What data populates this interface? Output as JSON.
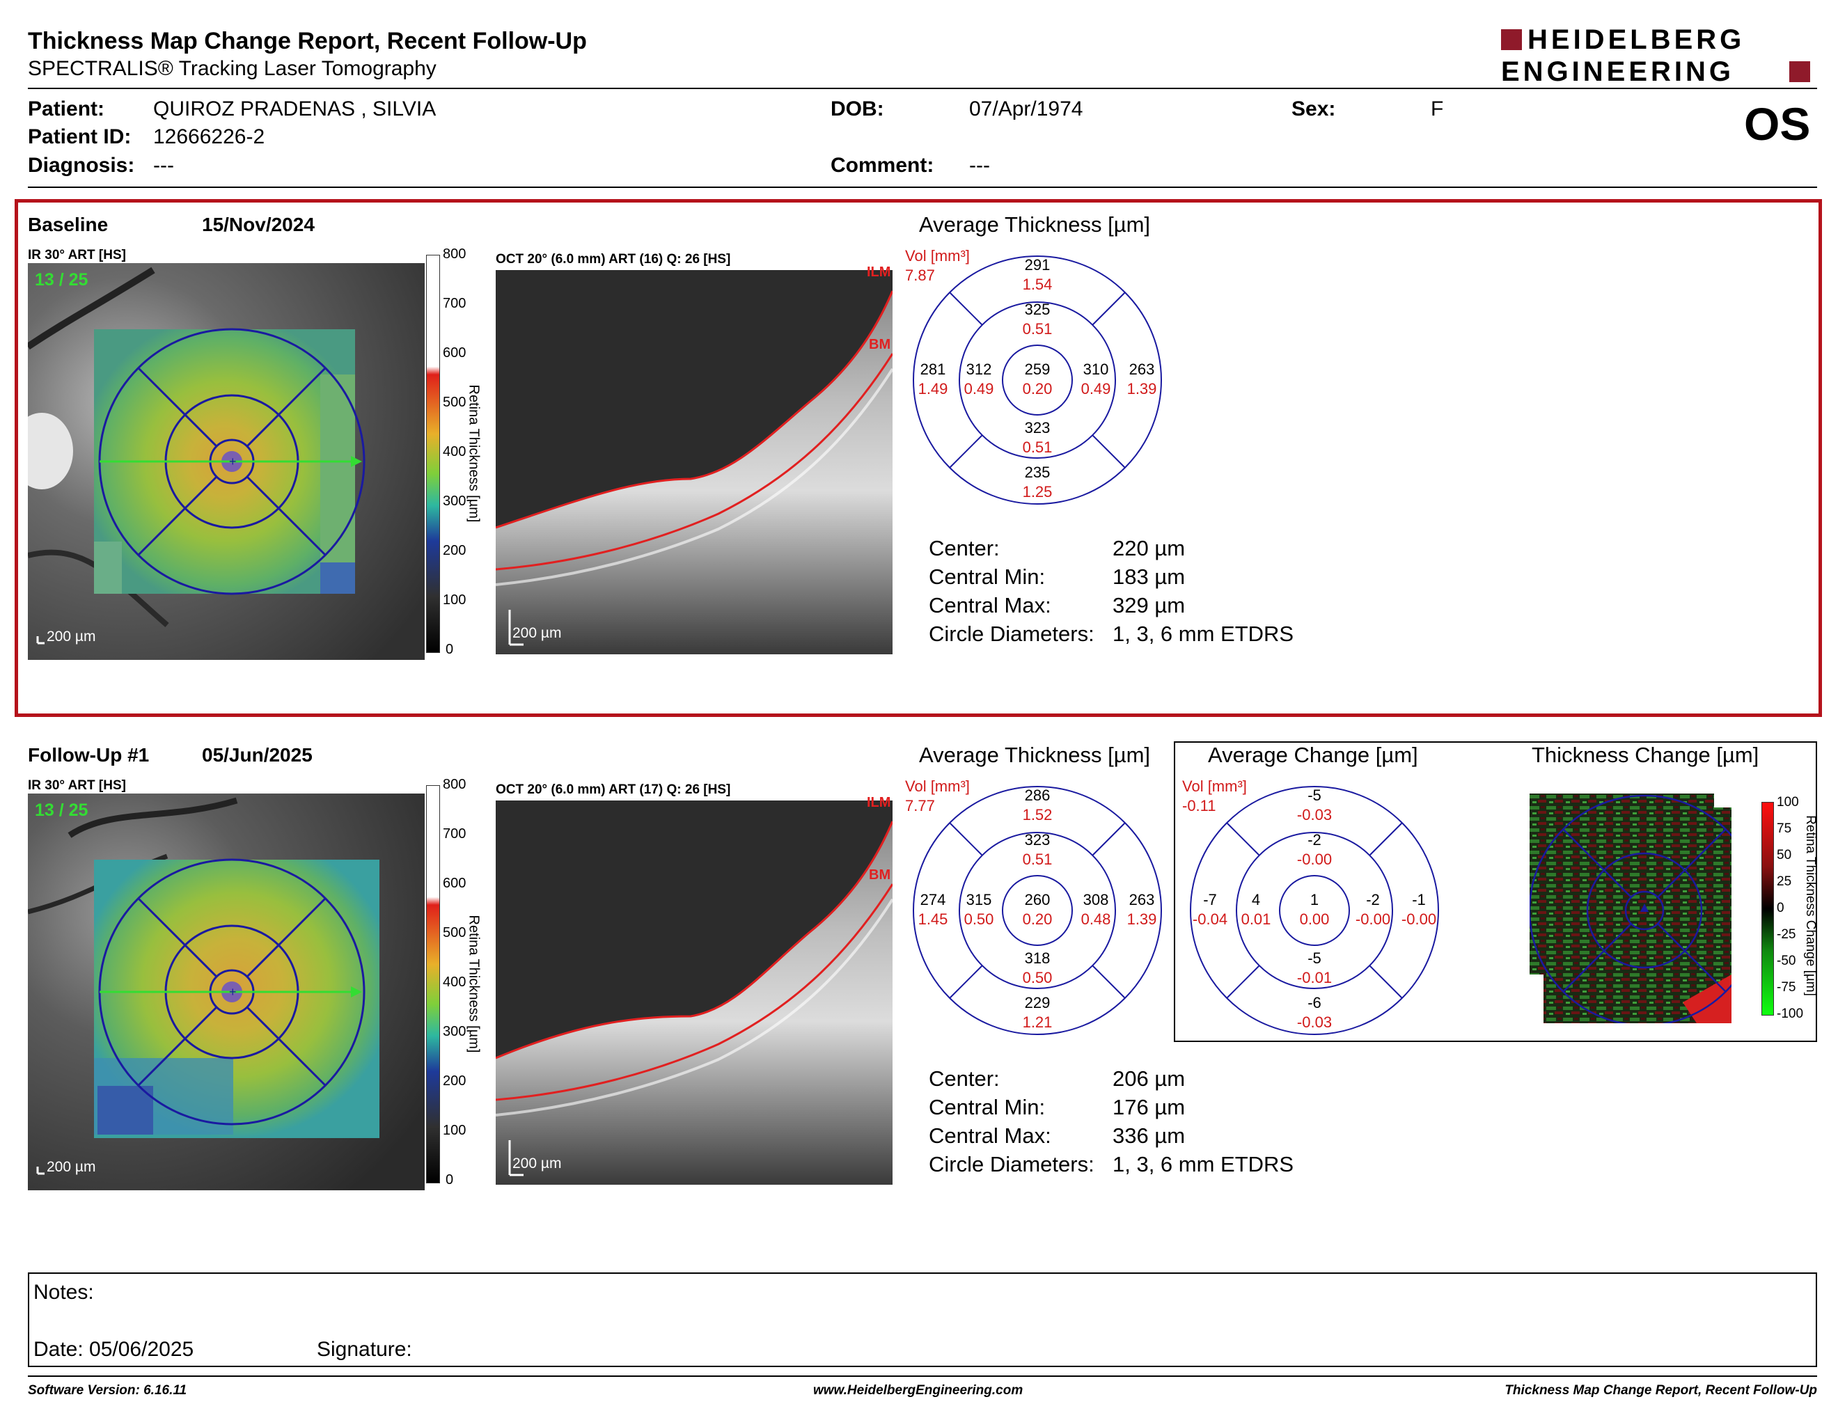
{
  "header": {
    "title": "Thickness Map Change Report, Recent Follow-Up",
    "subtitle": "SPECTRALIS® Tracking Laser Tomography",
    "logo_line1": "HEIDELBERG",
    "logo_line2": "ENGINEERING",
    "eye": "OS"
  },
  "patient": {
    "name_label": "Patient:",
    "name": "QUIROZ PRADENAS , SILVIA",
    "id_label": "Patient ID:",
    "id": "12666226-2",
    "diagnosis_label": "Diagnosis:",
    "diagnosis": "---",
    "dob_label": "DOB:",
    "dob": "07/Apr/1974",
    "comment_label": "Comment:",
    "comment": "---",
    "sex_label": "Sex:",
    "sex": "F"
  },
  "baseline": {
    "label": "Baseline",
    "date": "15/Nov/2024",
    "ir_label": "IR 30° ART [HS]",
    "frame": "13 / 25",
    "scale_ir": "200 µm",
    "oct_label": "OCT 20° (6.0 mm) ART (16) Q: 26 [HS]",
    "scale_oct": "200 µm",
    "ilm": "ILM",
    "bm": "BM",
    "colorbar_title": "Retina Thickness [µm]",
    "colorbar_ticks": [
      "800",
      "700",
      "600",
      "500",
      "400",
      "300",
      "200",
      "100",
      "0"
    ],
    "avg_title": "Average Thickness [µm]",
    "vol_label": "Vol [mm³]",
    "vol_total": "7.87",
    "thick": {
      "center": "259",
      "inner_top": "325",
      "inner_left": "312",
      "inner_right": "310",
      "inner_bottom": "323",
      "outer_top": "291",
      "outer_left": "281",
      "outer_right": "263",
      "outer_bottom": "235"
    },
    "vol": {
      "center": "0.20",
      "inner_top": "0.51",
      "inner_left": "0.49",
      "inner_right": "0.49",
      "inner_bottom": "0.51",
      "outer_top": "1.54",
      "outer_left": "1.49",
      "outer_right": "1.39",
      "outer_bottom": "1.25"
    },
    "stats": [
      {
        "label": "Center:",
        "value": "220 µm"
      },
      {
        "label": "Central Min:",
        "value": "183 µm"
      },
      {
        "label": "Central Max:",
        "value": "329 µm"
      },
      {
        "label": "Circle Diameters:",
        "value": "1, 3, 6 mm ETDRS"
      }
    ]
  },
  "followup": {
    "label": "Follow-Up #1",
    "date": "05/Jun/2025",
    "ir_label": "IR 30° ART [HS]",
    "frame": "13 / 25",
    "scale_ir": "200 µm",
    "oct_label": "OCT 20° (6.0 mm) ART (17) Q: 26 [HS]",
    "scale_oct": "200 µm",
    "ilm": "ILM",
    "bm": "BM",
    "colorbar_title": "Retina Thickness [µm]",
    "colorbar_ticks": [
      "800",
      "700",
      "600",
      "500",
      "400",
      "300",
      "200",
      "100",
      "0"
    ],
    "avg_title": "Average Thickness [µm]",
    "vol_label": "Vol [mm³]",
    "vol_total": "7.77",
    "thick": {
      "center": "260",
      "inner_top": "323",
      "inner_left": "315",
      "inner_right": "308",
      "inner_bottom": "318",
      "outer_top": "286",
      "outer_left": "274",
      "outer_right": "263",
      "outer_bottom": "229"
    },
    "vol": {
      "center": "0.20",
      "inner_top": "0.51",
      "inner_left": "0.50",
      "inner_right": "0.48",
      "inner_bottom": "0.50",
      "outer_top": "1.52",
      "outer_left": "1.45",
      "outer_right": "1.39",
      "outer_bottom": "1.21"
    },
    "stats": [
      {
        "label": "Center:",
        "value": "206 µm"
      },
      {
        "label": "Central Min:",
        "value": "176 µm"
      },
      {
        "label": "Central Max:",
        "value": "336 µm"
      },
      {
        "label": "Circle Diameters:",
        "value": "1, 3, 6 mm ETDRS"
      }
    ],
    "change_title": "Average Change [µm]",
    "change_vol_label": "Vol [mm³]",
    "change_vol_total": "-0.11",
    "change": {
      "center": "1",
      "inner_top": "-2",
      "inner_left": "4",
      "inner_right": "-2",
      "inner_bottom": "-5",
      "outer_top": "-5",
      "outer_left": "-7",
      "outer_right": "-1",
      "outer_bottom": "-6"
    },
    "change_vol": {
      "center": "0.00",
      "inner_top": "-0.00",
      "inner_left": "0.01",
      "inner_right": "-0.00",
      "inner_bottom": "-0.01",
      "outer_top": "-0.03",
      "outer_left": "-0.04",
      "outer_right": "-0.00",
      "outer_bottom": "-0.03"
    },
    "tchange_title": "Thickness Change [µm]",
    "tchange_colorbar_title": "Retina Thickness Change [µm]",
    "tchange_ticks": [
      "100",
      "75",
      "50",
      "25",
      "0",
      "-25",
      "-50",
      "-75",
      "-100"
    ]
  },
  "notes": {
    "notes_label": "Notes:",
    "date_label": "Date: 05/06/2025",
    "signature_label": "Signature:"
  },
  "footer": {
    "left": "Software Version: 6.16.11",
    "center": "www.HeidelbergEngineering.com",
    "right": "Thickness Map Change Report, Recent Follow-Up"
  },
  "colors": {
    "accent_red": "#b5121b",
    "logo_red": "#8f1a2a",
    "etdrs_blue": "#1a1aa0",
    "value_red": "#d11a1a",
    "frame_green": "#33dd33"
  }
}
